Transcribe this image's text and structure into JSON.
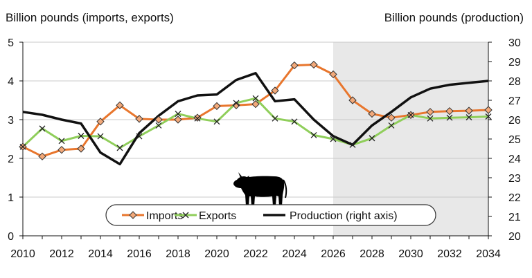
{
  "chart_data": {
    "type": "line",
    "left_axis_label": "Billion pounds (imports, exports)",
    "right_axis_label": "Billion pounds (production)",
    "x": [
      2010,
      2011,
      2012,
      2013,
      2014,
      2015,
      2016,
      2017,
      2018,
      2019,
      2020,
      2021,
      2022,
      2023,
      2024,
      2025,
      2026,
      2027,
      2028,
      2029,
      2030,
      2031,
      2032,
      2033,
      2034
    ],
    "xlim": [
      2010,
      2034
    ],
    "x_ticks": [
      "2010",
      "2012",
      "2014",
      "2016",
      "2018",
      "2020",
      "2022",
      "2024",
      "2026",
      "2028",
      "2030",
      "2032",
      "2034"
    ],
    "ylim_left": [
      0,
      5
    ],
    "y_ticks_left": [
      "0",
      "1",
      "2",
      "3",
      "4",
      "5"
    ],
    "ylim_right": [
      20,
      30
    ],
    "y_ticks_right": [
      "20",
      "21",
      "22",
      "23",
      "24",
      "25",
      "26",
      "27",
      "28",
      "29",
      "30"
    ],
    "projection_shade": {
      "from": 2026,
      "to": 2034,
      "color": "#e8e8e8"
    },
    "series": [
      {
        "name": "Imports",
        "axis": "left",
        "color": "#e8762d",
        "marker": "diamond",
        "values": [
          2.3,
          2.05,
          2.22,
          2.25,
          2.95,
          3.37,
          3.02,
          3.0,
          3.0,
          3.05,
          3.35,
          3.37,
          3.4,
          3.75,
          4.4,
          4.42,
          4.17,
          3.5,
          3.15,
          3.05,
          3.12,
          3.2,
          3.22,
          3.23,
          3.25
        ]
      },
      {
        "name": "Exports",
        "axis": "left",
        "color": "#8fce5a",
        "marker": "x",
        "values": [
          2.3,
          2.77,
          2.45,
          2.58,
          2.57,
          2.27,
          2.57,
          2.85,
          3.15,
          3.03,
          2.95,
          3.43,
          3.55,
          3.03,
          2.95,
          2.6,
          2.5,
          2.35,
          2.52,
          2.85,
          3.12,
          3.03,
          3.05,
          3.06,
          3.08
        ]
      },
      {
        "name": "Production (right axis)",
        "axis": "right",
        "color": "#111111",
        "marker": "none",
        "values": [
          26.4,
          26.25,
          26.0,
          25.8,
          24.3,
          23.7,
          25.3,
          26.2,
          26.95,
          27.25,
          27.3,
          28.05,
          28.4,
          26.95,
          27.05,
          26.0,
          25.15,
          24.7,
          25.7,
          26.4,
          27.15,
          27.6,
          27.8,
          27.9,
          28.0
        ]
      }
    ],
    "legend_position": "bottom-center",
    "grid": "horizontal",
    "icon": "cow-icon"
  }
}
